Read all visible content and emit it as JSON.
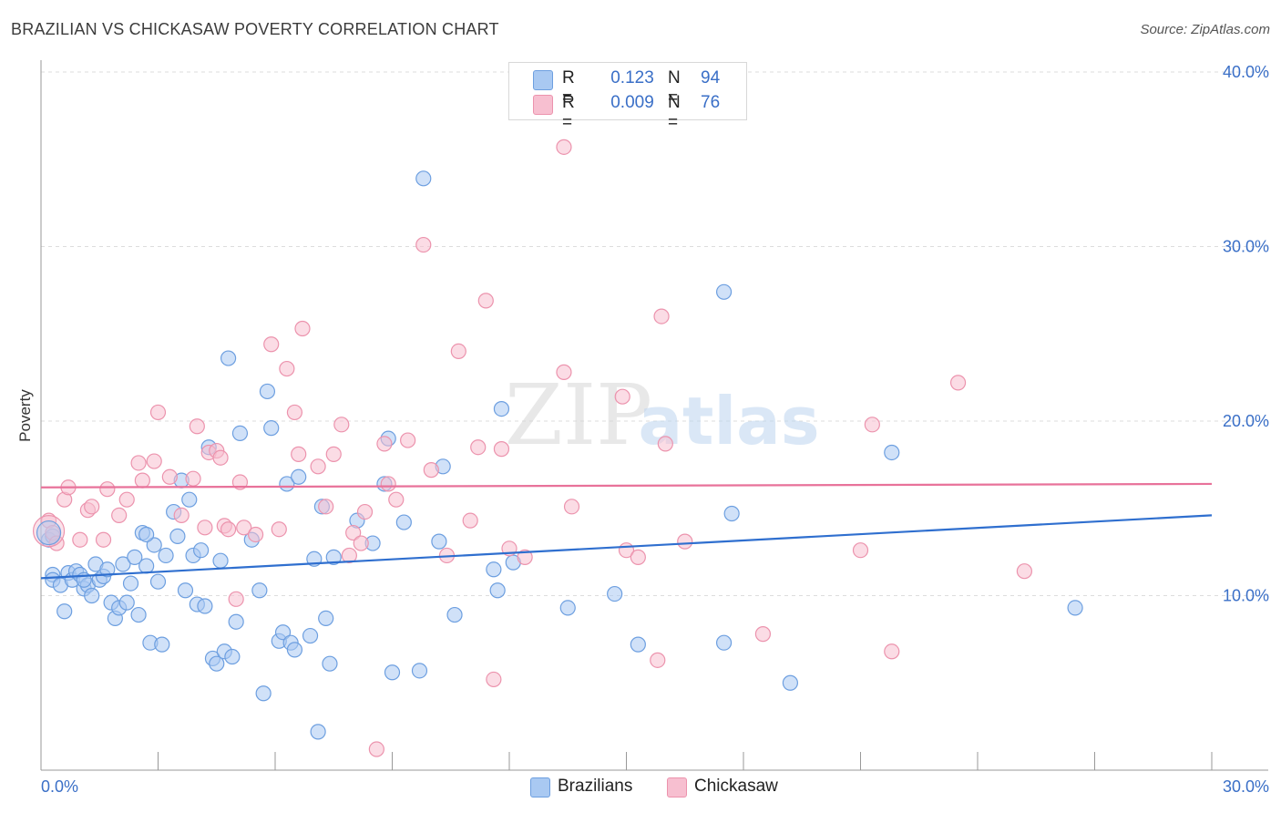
{
  "header": {
    "title": "BRAZILIAN VS CHICKASAW POVERTY CORRELATION CHART",
    "source": "Source: ZipAtlas.com"
  },
  "watermark": {
    "part1": "ZIP",
    "part2": "atlas"
  },
  "legend": {
    "rows": [
      {
        "r_label": "R =",
        "r_value": "0.123",
        "n_label": "N =",
        "n_value": "94"
      },
      {
        "r_label": "R =",
        "r_value": "0.009",
        "n_label": "N =",
        "n_value": "76"
      }
    ]
  },
  "bottom_legend": {
    "brazilians": "Brazilians",
    "chickasaw": "Chickasaw"
  },
  "colors": {
    "blue_fill": "#a9c9f2",
    "blue_stroke": "#6d9fe0",
    "blue_line": "#2f6fcf",
    "pink_fill": "#f7bfd0",
    "pink_stroke": "#ec93ad",
    "pink_line": "#e8729a",
    "tick_label": "#3a6fc7",
    "grid": "#dddddd"
  },
  "chart_data": {
    "type": "scatter",
    "xlabel": "",
    "ylabel": "Poverty",
    "xlim": [
      0,
      30
    ],
    "ylim": [
      0,
      40
    ],
    "x_tick_labels": [
      "0.0%",
      "30.0%"
    ],
    "y_ticks": [
      10,
      20,
      30,
      40
    ],
    "y_tick_labels": [
      "10.0%",
      "20.0%",
      "30.0%",
      "40.0%"
    ],
    "grid": true,
    "legend_position": "top-center",
    "series": [
      {
        "name": "Brazilians",
        "trend": [
          [
            0,
            11.0
          ],
          [
            30,
            14.6
          ]
        ],
        "points": [
          [
            0.2,
            13.2
          ],
          [
            0.3,
            11.2
          ],
          [
            0.3,
            10.9
          ],
          [
            0.5,
            10.6
          ],
          [
            0.7,
            11.3
          ],
          [
            0.8,
            10.9
          ],
          [
            0.9,
            11.4
          ],
          [
            1.0,
            11.2
          ],
          [
            1.1,
            10.4
          ],
          [
            1.2,
            10.6
          ],
          [
            1.3,
            10.0
          ],
          [
            1.4,
            11.8
          ],
          [
            1.5,
            10.9
          ],
          [
            1.6,
            11.1
          ],
          [
            1.7,
            11.5
          ],
          [
            1.8,
            9.6
          ],
          [
            1.9,
            8.7
          ],
          [
            2.0,
            9.3
          ],
          [
            2.1,
            11.8
          ],
          [
            2.2,
            9.6
          ],
          [
            2.3,
            10.7
          ],
          [
            2.4,
            12.2
          ],
          [
            2.5,
            8.9
          ],
          [
            2.6,
            13.6
          ],
          [
            2.7,
            11.7
          ],
          [
            2.8,
            7.3
          ],
          [
            2.9,
            12.9
          ],
          [
            3.0,
            10.8
          ],
          [
            3.1,
            7.2
          ],
          [
            3.2,
            12.3
          ],
          [
            3.4,
            14.8
          ],
          [
            3.5,
            13.4
          ],
          [
            3.6,
            16.6
          ],
          [
            3.7,
            10.3
          ],
          [
            3.8,
            15.5
          ],
          [
            3.9,
            12.3
          ],
          [
            4.0,
            9.5
          ],
          [
            4.1,
            12.6
          ],
          [
            4.2,
            9.4
          ],
          [
            4.3,
            18.5
          ],
          [
            4.4,
            6.4
          ],
          [
            4.5,
            6.1
          ],
          [
            4.6,
            12.0
          ],
          [
            4.7,
            6.8
          ],
          [
            4.8,
            23.6
          ],
          [
            4.9,
            6.5
          ],
          [
            5.0,
            8.5
          ],
          [
            5.1,
            19.3
          ],
          [
            5.4,
            13.2
          ],
          [
            5.6,
            10.3
          ],
          [
            5.7,
            4.4
          ],
          [
            5.8,
            21.7
          ],
          [
            5.9,
            19.6
          ],
          [
            6.1,
            7.4
          ],
          [
            6.2,
            7.9
          ],
          [
            6.3,
            16.4
          ],
          [
            6.4,
            7.3
          ],
          [
            6.5,
            6.9
          ],
          [
            6.6,
            16.8
          ],
          [
            6.9,
            7.7
          ],
          [
            7.0,
            12.1
          ],
          [
            7.1,
            2.2
          ],
          [
            7.2,
            15.1
          ],
          [
            7.3,
            8.7
          ],
          [
            7.4,
            6.1
          ],
          [
            7.5,
            12.2
          ],
          [
            8.1,
            14.3
          ],
          [
            8.5,
            13.0
          ],
          [
            8.8,
            16.4
          ],
          [
            8.9,
            19.0
          ],
          [
            9.0,
            5.6
          ],
          [
            9.3,
            14.2
          ],
          [
            9.7,
            5.7
          ],
          [
            9.8,
            33.9
          ],
          [
            10.2,
            13.1
          ],
          [
            10.3,
            17.4
          ],
          [
            10.6,
            8.9
          ],
          [
            11.6,
            11.5
          ],
          [
            11.7,
            10.3
          ],
          [
            11.8,
            20.7
          ],
          [
            12.1,
            11.9
          ],
          [
            13.5,
            9.3
          ],
          [
            14.7,
            10.1
          ],
          [
            15.3,
            7.2
          ],
          [
            17.5,
            27.4
          ],
          [
            17.5,
            7.3
          ],
          [
            17.7,
            14.7
          ],
          [
            19.2,
            5.0
          ],
          [
            21.8,
            18.2
          ],
          [
            26.5,
            9.3
          ],
          [
            0.3,
            13.4
          ],
          [
            0.6,
            9.1
          ],
          [
            1.1,
            10.9
          ],
          [
            2.7,
            13.5
          ]
        ]
      },
      {
        "name": "Chickasaw",
        "trend": [
          [
            0,
            16.2
          ],
          [
            30,
            16.4
          ]
        ],
        "points": [
          [
            0.2,
            14.3
          ],
          [
            0.3,
            13.6
          ],
          [
            0.4,
            13.0
          ],
          [
            0.6,
            15.5
          ],
          [
            0.7,
            16.2
          ],
          [
            1.0,
            13.2
          ],
          [
            1.2,
            14.9
          ],
          [
            1.3,
            15.1
          ],
          [
            1.6,
            13.2
          ],
          [
            1.7,
            16.1
          ],
          [
            2.0,
            14.6
          ],
          [
            2.2,
            15.5
          ],
          [
            2.5,
            17.6
          ],
          [
            2.6,
            16.6
          ],
          [
            2.9,
            17.7
          ],
          [
            3.0,
            20.5
          ],
          [
            3.3,
            16.8
          ],
          [
            3.6,
            14.6
          ],
          [
            3.9,
            16.7
          ],
          [
            4.0,
            19.7
          ],
          [
            4.2,
            13.9
          ],
          [
            4.3,
            18.2
          ],
          [
            4.5,
            18.3
          ],
          [
            4.6,
            17.9
          ],
          [
            4.7,
            14.0
          ],
          [
            4.8,
            13.8
          ],
          [
            5.0,
            9.8
          ],
          [
            5.1,
            16.5
          ],
          [
            5.2,
            13.9
          ],
          [
            5.5,
            13.5
          ],
          [
            5.9,
            24.4
          ],
          [
            6.1,
            13.8
          ],
          [
            6.3,
            23.0
          ],
          [
            6.5,
            20.5
          ],
          [
            6.6,
            18.1
          ],
          [
            6.7,
            25.3
          ],
          [
            7.1,
            17.4
          ],
          [
            7.3,
            15.1
          ],
          [
            7.5,
            18.1
          ],
          [
            7.7,
            19.8
          ],
          [
            7.9,
            12.3
          ],
          [
            8.0,
            13.6
          ],
          [
            8.2,
            13.0
          ],
          [
            8.3,
            14.8
          ],
          [
            8.6,
            1.2
          ],
          [
            8.8,
            18.7
          ],
          [
            8.9,
            16.4
          ],
          [
            9.1,
            15.5
          ],
          [
            9.4,
            18.9
          ],
          [
            9.8,
            30.1
          ],
          [
            10.0,
            17.2
          ],
          [
            10.4,
            12.3
          ],
          [
            10.7,
            24.0
          ],
          [
            11.0,
            14.3
          ],
          [
            11.2,
            18.5
          ],
          [
            11.4,
            26.9
          ],
          [
            11.6,
            5.2
          ],
          [
            11.8,
            18.4
          ],
          [
            12.0,
            12.7
          ],
          [
            12.4,
            12.2
          ],
          [
            13.4,
            22.8
          ],
          [
            13.4,
            35.7
          ],
          [
            13.6,
            15.1
          ],
          [
            14.9,
            21.4
          ],
          [
            15.0,
            12.6
          ],
          [
            15.3,
            12.2
          ],
          [
            15.8,
            6.3
          ],
          [
            15.9,
            26.0
          ],
          [
            16.0,
            18.7
          ],
          [
            16.5,
            13.1
          ],
          [
            18.5,
            7.8
          ],
          [
            21.0,
            12.6
          ],
          [
            21.3,
            19.8
          ],
          [
            21.8,
            6.8
          ],
          [
            23.5,
            22.2
          ],
          [
            25.2,
            11.4
          ]
        ]
      }
    ]
  }
}
